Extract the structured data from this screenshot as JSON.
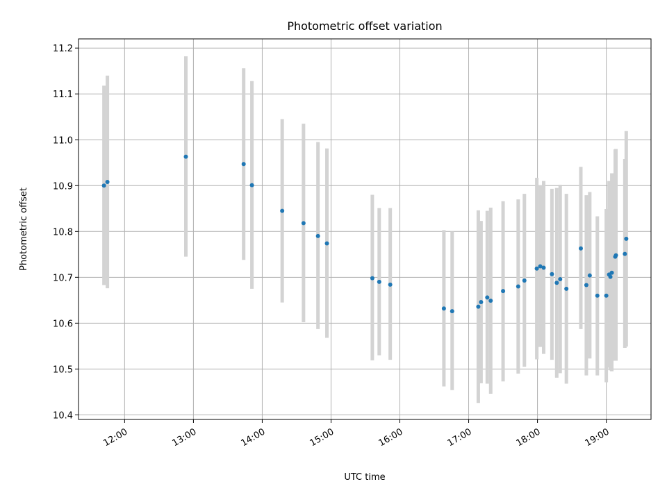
{
  "chart_data": {
    "type": "scatter",
    "title": "Photometric offset variation",
    "xlabel": "UTC time",
    "ylabel": "Photometric offset",
    "x_ticks": [
      "12:00",
      "13:00",
      "14:00",
      "15:00",
      "16:00",
      "17:00",
      "18:00",
      "19:00"
    ],
    "x_tick_hours": [
      12,
      13,
      14,
      15,
      16,
      17,
      18,
      19
    ],
    "y_ticks": [
      "10.4",
      "10.5",
      "10.6",
      "10.7",
      "10.8",
      "10.9",
      "11.0",
      "11.1",
      "11.2"
    ],
    "y_tick_values": [
      10.4,
      10.5,
      10.6,
      10.7,
      10.8,
      10.9,
      11.0,
      11.1,
      11.2
    ],
    "xlim_hours": [
      11.33,
      19.65
    ],
    "ylim": [
      10.39,
      11.22
    ],
    "grid": true,
    "colors": {
      "point": "#1f77b4",
      "errorbar": "#d3d3d3"
    },
    "points": [
      {
        "t": 11.7,
        "y": 10.9,
        "lo": 10.683,
        "hi": 11.118
      },
      {
        "t": 11.75,
        "y": 10.908,
        "lo": 10.676,
        "hi": 11.14
      },
      {
        "t": 12.89,
        "y": 10.963,
        "lo": 10.745,
        "hi": 11.182
      },
      {
        "t": 13.73,
        "y": 10.947,
        "lo": 10.738,
        "hi": 11.156
      },
      {
        "t": 13.85,
        "y": 10.901,
        "lo": 10.675,
        "hi": 11.128
      },
      {
        "t": 14.29,
        "y": 10.845,
        "lo": 10.645,
        "hi": 11.045
      },
      {
        "t": 14.6,
        "y": 10.818,
        "lo": 10.602,
        "hi": 11.035
      },
      {
        "t": 14.81,
        "y": 10.79,
        "lo": 10.587,
        "hi": 10.995
      },
      {
        "t": 14.94,
        "y": 10.774,
        "lo": 10.568,
        "hi": 10.981
      },
      {
        "t": 15.6,
        "y": 10.698,
        "lo": 10.519,
        "hi": 10.88
      },
      {
        "t": 15.7,
        "y": 10.69,
        "lo": 10.53,
        "hi": 10.851
      },
      {
        "t": 15.86,
        "y": 10.684,
        "lo": 10.52,
        "hi": 10.851
      },
      {
        "t": 16.64,
        "y": 10.632,
        "lo": 10.462,
        "hi": 10.803
      },
      {
        "t": 16.76,
        "y": 10.626,
        "lo": 10.454,
        "hi": 10.8
      },
      {
        "t": 17.14,
        "y": 10.636,
        "lo": 10.426,
        "hi": 10.846
      },
      {
        "t": 17.18,
        "y": 10.646,
        "lo": 10.469,
        "hi": 10.823
      },
      {
        "t": 17.27,
        "y": 10.656,
        "lo": 10.468,
        "hi": 10.845
      },
      {
        "t": 17.32,
        "y": 10.649,
        "lo": 10.446,
        "hi": 10.852
      },
      {
        "t": 17.5,
        "y": 10.67,
        "lo": 10.473,
        "hi": 10.866
      },
      {
        "t": 17.72,
        "y": 10.68,
        "lo": 10.49,
        "hi": 10.87
      },
      {
        "t": 17.81,
        "y": 10.693,
        "lo": 10.505,
        "hi": 10.882
      },
      {
        "t": 17.99,
        "y": 10.719,
        "lo": 10.521,
        "hi": 10.917
      },
      {
        "t": 18.04,
        "y": 10.724,
        "lo": 10.548,
        "hi": 10.901
      },
      {
        "t": 18.09,
        "y": 10.721,
        "lo": 10.533,
        "hi": 10.91
      },
      {
        "t": 18.21,
        "y": 10.707,
        "lo": 10.52,
        "hi": 10.893
      },
      {
        "t": 18.28,
        "y": 10.688,
        "lo": 10.481,
        "hi": 10.895
      },
      {
        "t": 18.33,
        "y": 10.696,
        "lo": 10.491,
        "hi": 10.902
      },
      {
        "t": 18.42,
        "y": 10.675,
        "lo": 10.468,
        "hi": 10.882
      },
      {
        "t": 18.63,
        "y": 10.763,
        "lo": 10.587,
        "hi": 10.941
      },
      {
        "t": 18.71,
        "y": 10.683,
        "lo": 10.486,
        "hi": 10.879
      },
      {
        "t": 18.76,
        "y": 10.704,
        "lo": 10.523,
        "hi": 10.886
      },
      {
        "t": 18.87,
        "y": 10.66,
        "lo": 10.486,
        "hi": 10.833
      },
      {
        "t": 19.0,
        "y": 10.66,
        "lo": 10.471,
        "hi": 10.849
      },
      {
        "t": 19.04,
        "y": 10.706,
        "lo": 10.503,
        "hi": 10.91
      },
      {
        "t": 19.06,
        "y": 10.701,
        "lo": 10.497,
        "hi": 10.905
      },
      {
        "t": 19.08,
        "y": 10.71,
        "lo": 10.495,
        "hi": 10.927
      },
      {
        "t": 19.13,
        "y": 10.745,
        "lo": 10.518,
        "hi": 10.979
      },
      {
        "t": 19.14,
        "y": 10.748,
        "lo": 10.518,
        "hi": 10.98
      },
      {
        "t": 19.27,
        "y": 10.751,
        "lo": 10.546,
        "hi": 10.958
      },
      {
        "t": 19.29,
        "y": 10.784,
        "lo": 10.549,
        "hi": 11.019
      }
    ]
  }
}
